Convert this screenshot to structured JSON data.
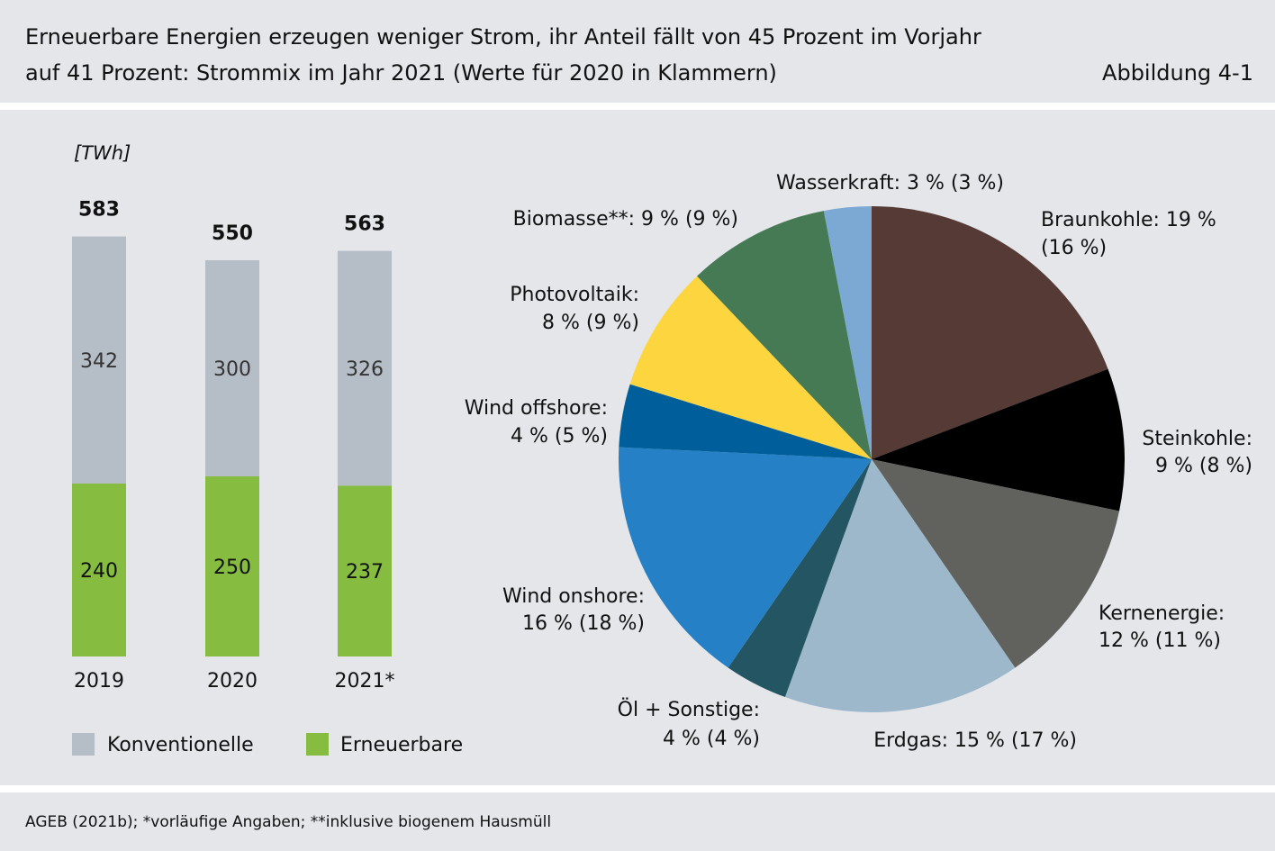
{
  "header": {
    "title_line1": "Erneuerbare Energien erzeugen weniger Strom, ihr Anteil fällt von 45 Prozent im Vorjahr",
    "title_line2": "auf 41 Prozent: Strommix im Jahr 2021 (Werte für 2020 in Klammern)",
    "figure_label": "Abbildung 4-1"
  },
  "footer": {
    "source": "AGEB (2021b); *vorläufige Angaben; **inklusive biogenem Hausmüll"
  },
  "colors": {
    "background": "#e4e6ea",
    "konventionelle": "#b5bec6",
    "erneuerbare": "#86bd41"
  },
  "chart_data": [
    {
      "type": "bar",
      "stacked": true,
      "unit_label": "[TWh]",
      "categories": [
        "2019",
        "2020",
        "2021*"
      ],
      "totals": [
        583,
        550,
        563
      ],
      "series": [
        {
          "name": "Erneuerbare",
          "values": [
            240,
            250,
            237
          ],
          "color": "#86bd41"
        },
        {
          "name": "Konventionelle",
          "values": [
            342,
            300,
            326
          ],
          "color": "#b5bec6"
        }
      ],
      "legend": [
        "Konventionelle",
        "Erneuerbare"
      ],
      "legend_placement": "bottom"
    },
    {
      "type": "pie",
      "unit": "%",
      "slices": [
        {
          "name": "Braunkohle",
          "value": 19,
          "prev": 16,
          "color": "#553a36",
          "label1": "Braunkohle: 19 %",
          "label2": "(16 %)"
        },
        {
          "name": "Steinkohle",
          "value": 9,
          "prev": 8,
          "color": "#000000",
          "label1": "Steinkohle:",
          "label2": "9 % (8 %)"
        },
        {
          "name": "Kernenergie",
          "value": 12,
          "prev": 11,
          "color": "#61615e",
          "label1": "Kernenergie:",
          "label2": "12 % (11 %)"
        },
        {
          "name": "Erdgas",
          "value": 15,
          "prev": 17,
          "color": "#9cb8ca",
          "label1": "Erdgas: 15 % (17 %)",
          "label2": ""
        },
        {
          "name": "Öl + Sonstige",
          "value": 4,
          "prev": 4,
          "color": "#245562",
          "label1": "Öl + Sonstige:",
          "label2": "4 % (4 %)"
        },
        {
          "name": "Wind onshore",
          "value": 16,
          "prev": 18,
          "color": "#2580c5",
          "label1": "Wind onshore:",
          "label2": "16 % (18 %)"
        },
        {
          "name": "Wind offshore",
          "value": 4,
          "prev": 5,
          "color": "#005f9b",
          "label1": "Wind offshore:",
          "label2": "4 % (5 %)"
        },
        {
          "name": "Photovoltaik",
          "value": 8,
          "prev": 9,
          "color": "#fdd53e",
          "label1": "Photovoltaik:",
          "label2": "8 % (9 %)"
        },
        {
          "name": "Biomasse**",
          "value": 9,
          "prev": 9,
          "color": "#467a54",
          "label1": "Biomasse**: 9 % (9 %)",
          "label2": ""
        },
        {
          "name": "Wasserkraft",
          "value": 3,
          "prev": 3,
          "color": "#7ca9d3",
          "label1": "Wasserkraft: 3 % (3 %)",
          "label2": ""
        }
      ]
    }
  ]
}
